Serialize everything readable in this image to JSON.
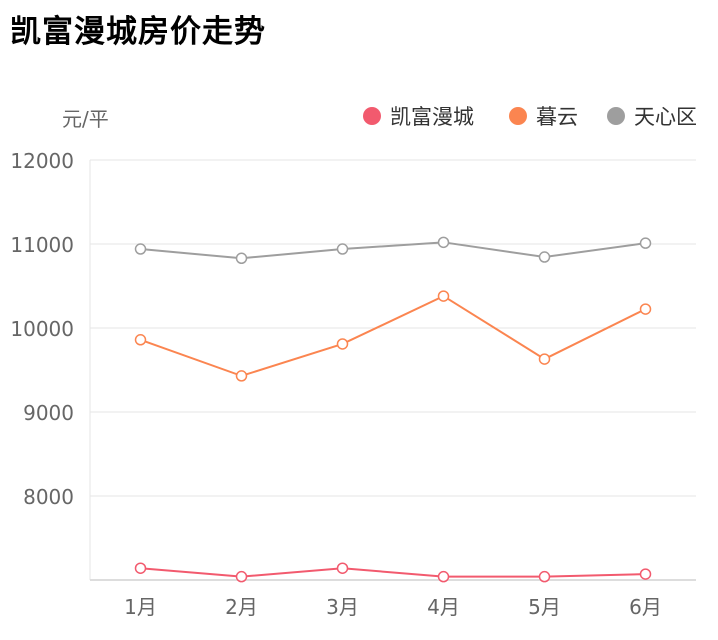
{
  "chart_data": {
    "type": "line",
    "title": "凯富漫城房价走势",
    "ylabel": "元/平",
    "xlabel": "",
    "categories": [
      "1月",
      "2月",
      "3月",
      "4月",
      "5月",
      "6月"
    ],
    "ylim": [
      7000,
      12000
    ],
    "yticks": [
      8000,
      9000,
      10000,
      11000,
      12000
    ],
    "grid": true,
    "legend": "top-right",
    "series": [
      {
        "name": "凯富漫城",
        "color": "#f25a6e",
        "values": [
          7140,
          7040,
          7140,
          7040,
          7040,
          7070
        ]
      },
      {
        "name": "暮云",
        "color": "#fb8550",
        "values": [
          9860,
          9430,
          9810,
          10380,
          9630,
          10225
        ]
      },
      {
        "name": "天心区",
        "color": "#9e9e9e",
        "values": [
          10940,
          10830,
          10940,
          11020,
          10845,
          11010
        ]
      }
    ]
  }
}
